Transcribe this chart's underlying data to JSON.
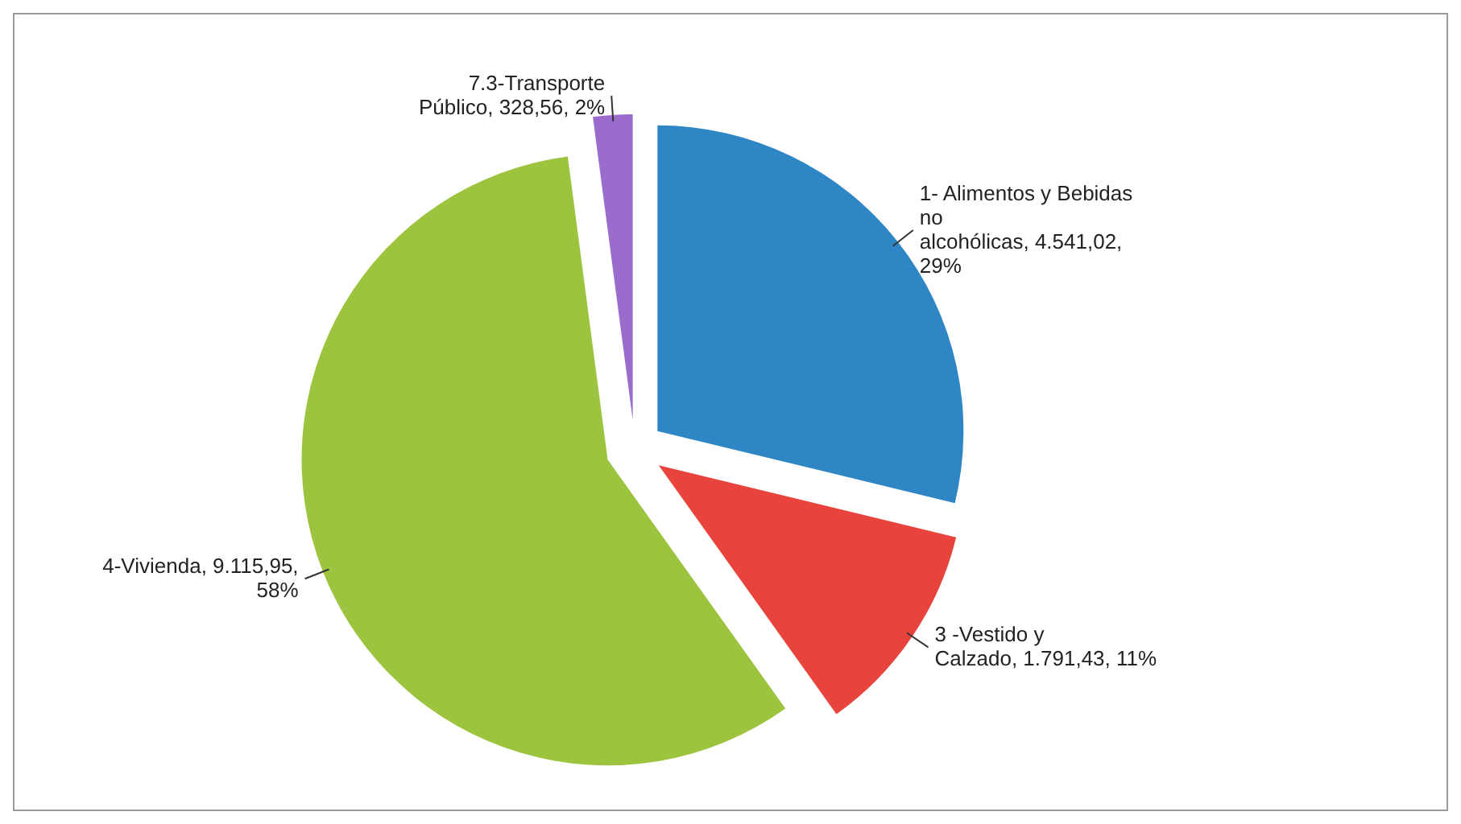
{
  "chart_data": {
    "type": "pie",
    "categories": [
      "1- Alimentos y Bebidas no alcohólicas",
      "3 -Vestido y Calzado",
      "4-Vivienda",
      "7.3-Transporte Público"
    ],
    "values": [
      4541.02,
      1791.43,
      9115.95,
      328.56
    ],
    "value_labels": [
      "4.541,02, 29%",
      "1.791,43, 11%",
      "9.115,95, 58%",
      "328,56, 2%"
    ],
    "colors": [
      "#2e86c4",
      "#e8433d",
      "#9dc43f",
      "#9a6ccb"
    ],
    "legend": false
  }
}
